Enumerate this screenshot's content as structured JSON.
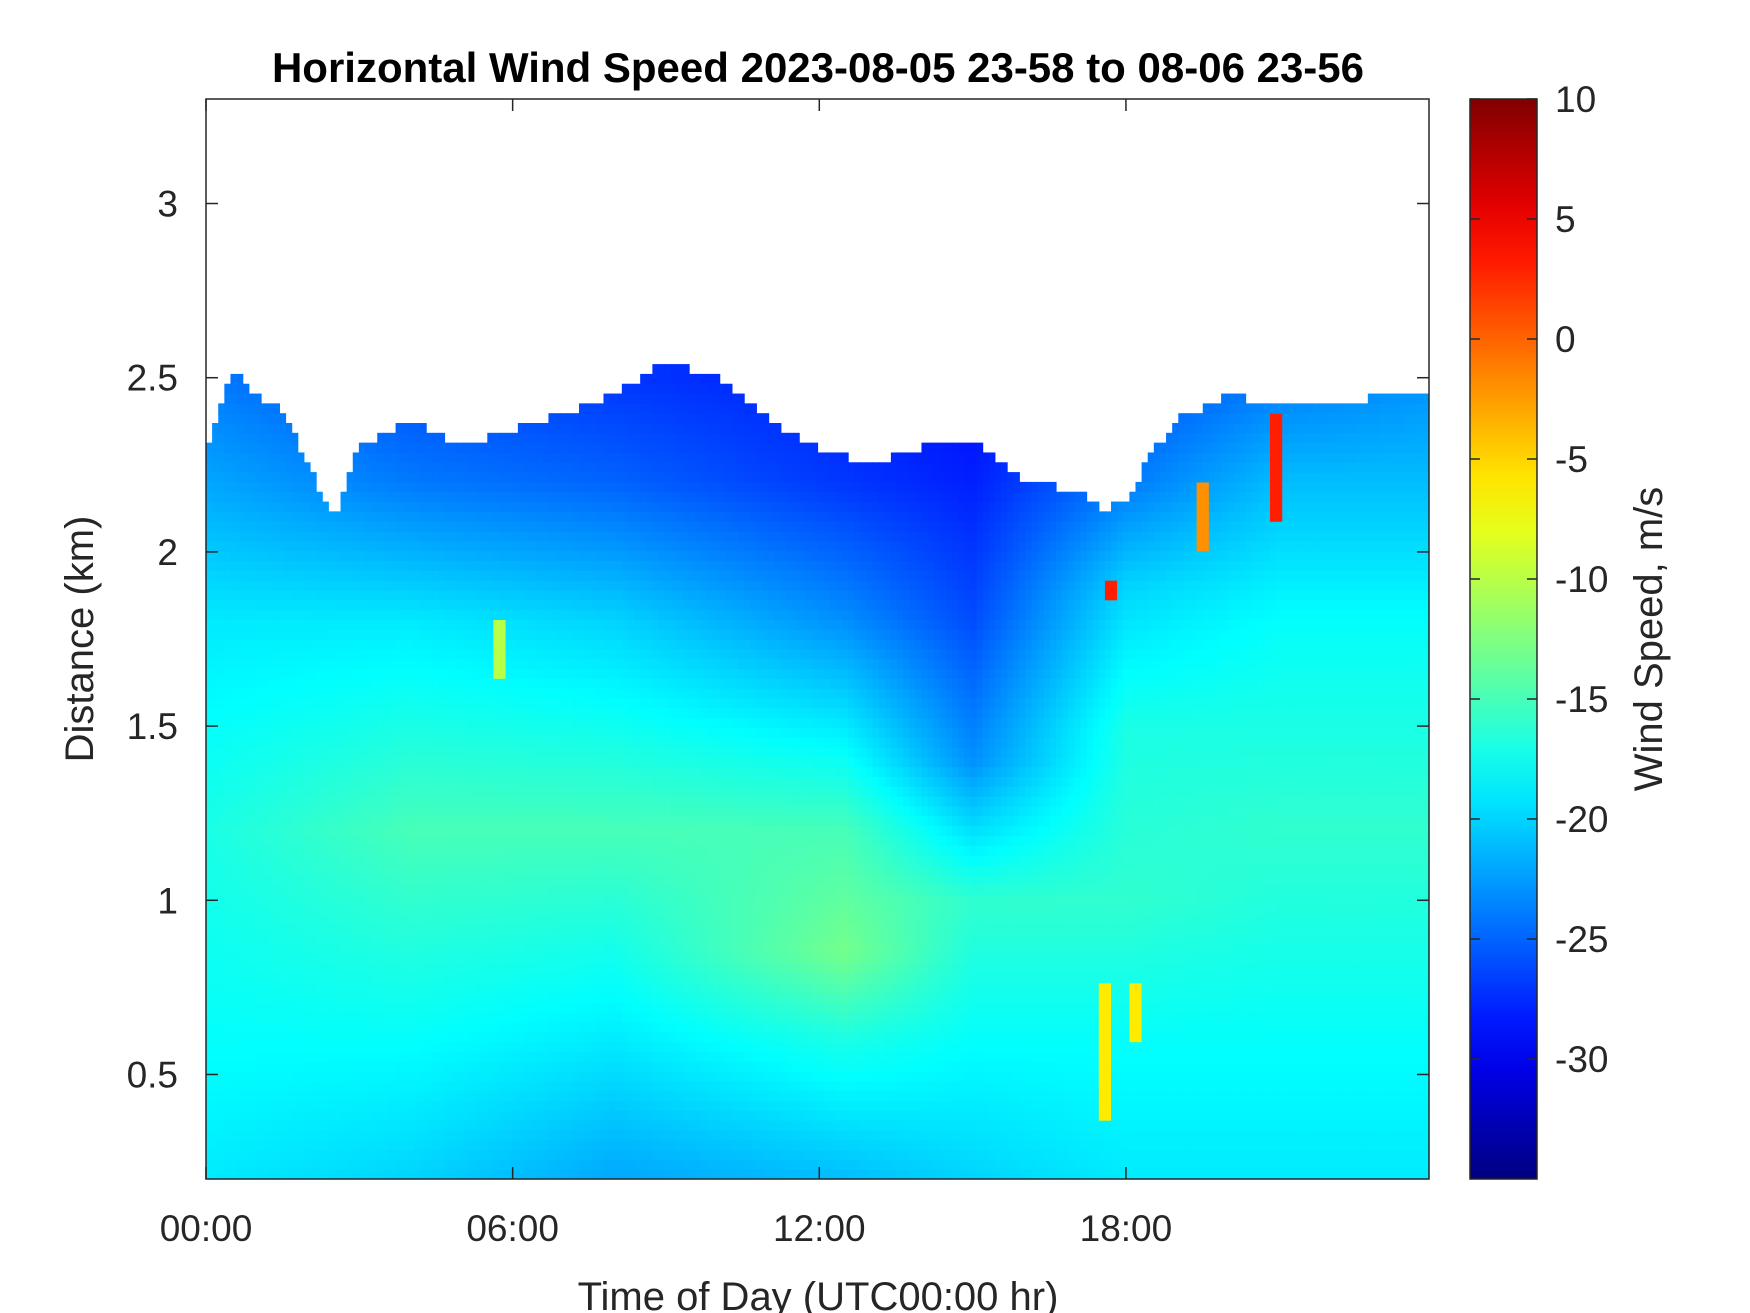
{
  "chart_data": {
    "type": "heatmap",
    "title": "Horizontal Wind Speed 2023-08-05 23-58 to 08-06 23-56",
    "xlabel": "Time of Day (UTC00:00 hr)",
    "ylabel": "Distance (km)",
    "colorbar_label": "Wind Speed, m/s",
    "x_range_hours": [
      0,
      23.93
    ],
    "y_range_km": [
      0.2,
      3.3
    ],
    "x_ticks": [
      {
        "hour": 0,
        "label": "00:00"
      },
      {
        "hour": 6,
        "label": "06:00"
      },
      {
        "hour": 12,
        "label": "12:00"
      },
      {
        "hour": 18,
        "label": "18:00"
      }
    ],
    "y_ticks": [
      {
        "km": 0.5,
        "label": "0.5"
      },
      {
        "km": 1,
        "label": "1"
      },
      {
        "km": 1.5,
        "label": "1.5"
      },
      {
        "km": 2,
        "label": "2"
      },
      {
        "km": 2.5,
        "label": "2.5"
      },
      {
        "km": 3,
        "label": "3"
      }
    ],
    "color_range": [
      -35,
      10
    ],
    "colorbar_ticks": [
      {
        "value": 10,
        "label": "10"
      },
      {
        "value": 5,
        "label": "5"
      },
      {
        "value": 0,
        "label": "0"
      },
      {
        "value": -5,
        "label": "-5"
      },
      {
        "value": -10,
        "label": "-10"
      },
      {
        "value": -15,
        "label": "-15"
      },
      {
        "value": -20,
        "label": "-20"
      },
      {
        "value": -25,
        "label": "-25"
      },
      {
        "value": -30,
        "label": "-30"
      }
    ],
    "colormap": "jet",
    "data_top_km": {
      "hours": [
        0,
        0.5,
        1,
        1.5,
        2,
        2.5,
        3,
        4,
        5,
        6,
        7,
        8,
        9,
        10,
        11,
        12,
        13,
        14,
        15,
        16,
        17,
        17.5,
        18,
        18.5,
        19,
        20,
        21,
        22,
        23,
        23.93
      ],
      "km": [
        2.3,
        2.52,
        2.45,
        2.4,
        2.25,
        2.1,
        2.3,
        2.38,
        2.3,
        2.35,
        2.4,
        2.45,
        2.55,
        2.5,
        2.38,
        2.3,
        2.25,
        2.3,
        2.32,
        2.2,
        2.18,
        2.12,
        2.15,
        2.28,
        2.38,
        2.45,
        2.42,
        2.42,
        2.45,
        2.45
      ]
    },
    "speed_profile_by_hour": [
      {
        "hour": 0,
        "km": [
          0.2,
          0.6,
          1.2,
          1.8,
          2.2,
          2.5
        ],
        "speed": [
          -19,
          -18,
          -17,
          -19,
          -22,
          -24
        ]
      },
      {
        "hour": 4,
        "km": [
          0.2,
          0.6,
          1.2,
          1.8,
          2.2,
          2.5
        ],
        "speed": [
          -20,
          -18,
          -15,
          -19,
          -24,
          -26
        ]
      },
      {
        "hour": 8,
        "km": [
          0.2,
          0.6,
          1.2,
          1.8,
          2.2,
          2.5
        ],
        "speed": [
          -22,
          -19,
          -15,
          -20,
          -25,
          -27
        ]
      },
      {
        "hour": 12.5,
        "km": [
          0.2,
          0.6,
          0.85,
          1.2,
          1.8,
          2.2,
          2.5
        ],
        "speed": [
          -21,
          -17,
          -13,
          -15,
          -23,
          -27,
          -28
        ]
      },
      {
        "hour": 15,
        "km": [
          0.2,
          0.6,
          1.0,
          1.4,
          1.8,
          2.2,
          2.5
        ],
        "speed": [
          -20,
          -18,
          -16,
          -23,
          -26,
          -28,
          -29
        ]
      },
      {
        "hour": 18,
        "km": [
          0.2,
          0.6,
          1.0,
          1.5,
          1.9,
          2.2,
          2.5
        ],
        "speed": [
          -19,
          -18,
          -16,
          -17,
          -20,
          -24,
          -26
        ]
      },
      {
        "hour": 21,
        "km": [
          0.2,
          0.6,
          1.2,
          1.8,
          2.2,
          2.5
        ],
        "speed": [
          -19,
          -18,
          -16,
          -18,
          -21,
          -24
        ]
      },
      {
        "hour": 23.93,
        "km": [
          0.2,
          0.6,
          1.2,
          1.8,
          2.2,
          2.5
        ],
        "speed": [
          -19,
          -18,
          -16,
          -18,
          -21,
          -23
        ]
      }
    ],
    "anomalies": [
      {
        "hour": 17.6,
        "km_from": 0.36,
        "km_to": 0.75,
        "speed": -6
      },
      {
        "hour": 18.2,
        "km_from": 0.6,
        "km_to": 0.75,
        "speed": -6
      },
      {
        "hour": 17.7,
        "km_from": 1.85,
        "km_to": 1.92,
        "speed": 3
      },
      {
        "hour": 19.5,
        "km_from": 2.0,
        "km_to": 2.2,
        "speed": -2
      },
      {
        "hour": 20.9,
        "km_from": 2.1,
        "km_to": 2.4,
        "speed": 3
      },
      {
        "hour": 5.7,
        "km_from": 1.65,
        "km_to": 1.8,
        "speed": -10
      }
    ]
  }
}
